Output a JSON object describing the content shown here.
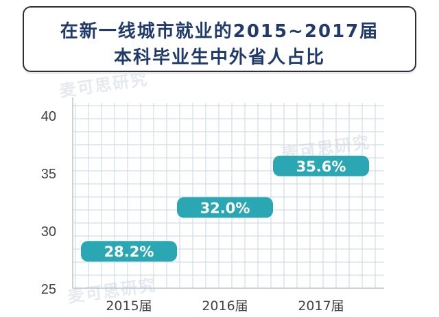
{
  "title": {
    "line1": "在新一线城市就业的2015~2017届",
    "line2": "本科毕业生中外省人占比"
  },
  "watermark": "麦可思研究",
  "chart_data": {
    "type": "bar",
    "style": "floating-label-bars",
    "categories": [
      "2015届",
      "2016届",
      "2017届"
    ],
    "values": [
      28.2,
      32.0,
      35.6
    ],
    "value_labels": [
      "28.2%",
      "32.0%",
      "35.6%"
    ],
    "ylim": [
      25,
      40
    ],
    "yticks": [
      25,
      30,
      35,
      40
    ],
    "ytick_labels": [
      "25",
      "30",
      "35",
      "40"
    ],
    "grid": true,
    "bar_color": "#2aa7b3",
    "grid_color": "#c8d4e6",
    "title": "在新一线城市就业的2015~2017届本科毕业生中外省人占比",
    "xlabel": "",
    "ylabel": ""
  }
}
